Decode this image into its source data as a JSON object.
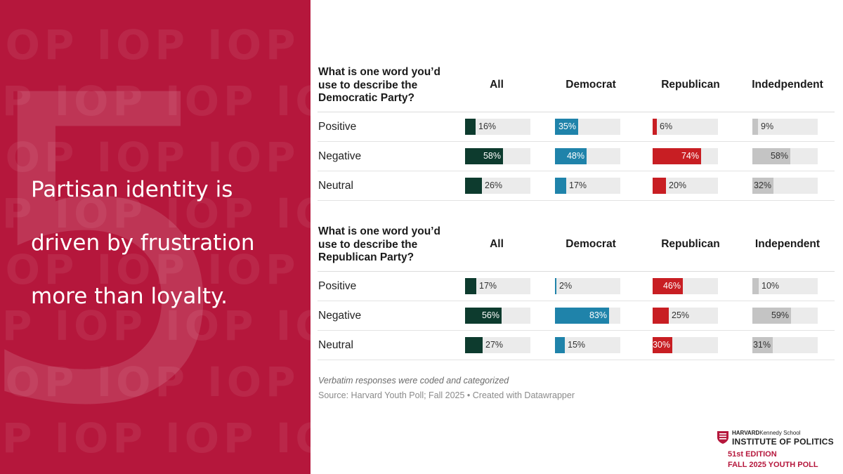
{
  "left_panel": {
    "background": "#b5173c",
    "big_number": "5",
    "watermark_text": "IOP",
    "headline_lines": [
      "Partisan identity is",
      "driven by frustration",
      "more than loyalty."
    ]
  },
  "colors": {
    "All": "#0d3b2e",
    "Democrat": "#1f83aa",
    "Republican": "#c81e23",
    "Independent": "#c4c4c4",
    "track": "#ebebeb"
  },
  "chart_data": [
    {
      "type": "table",
      "title": "What is one word you’d use to describe the Democratic Party?",
      "question_lines": [
        "What is one word you’d",
        "use to describe the",
        "Democratic Party?"
      ],
      "columns": [
        "All",
        "Democrat",
        "Republican",
        "Indedpendent"
      ],
      "rows": [
        {
          "label": "Positive",
          "values": [
            16,
            35,
            6,
            9
          ]
        },
        {
          "label": "Negative",
          "values": [
            58,
            48,
            74,
            58
          ]
        },
        {
          "label": "Neutral",
          "values": [
            26,
            17,
            20,
            32
          ]
        }
      ],
      "unit": "%",
      "value_range": [
        0,
        100
      ]
    },
    {
      "type": "table",
      "title": "What is one word you’d use to describe the Republican Party?",
      "question_lines": [
        "What is one word you’d",
        "use to describe the",
        "Republican Party?"
      ],
      "columns": [
        "All",
        "Democrat",
        "Republican",
        "Independent"
      ],
      "rows": [
        {
          "label": "Positive",
          "values": [
            17,
            2,
            46,
            10
          ]
        },
        {
          "label": "Negative",
          "values": [
            56,
            83,
            25,
            59
          ]
        },
        {
          "label": "Neutral",
          "values": [
            27,
            15,
            30,
            31
          ]
        }
      ],
      "unit": "%",
      "value_range": [
        0,
        100
      ]
    }
  ],
  "footnote": "Verbatim responses were coded and categorized",
  "source": "Source: Harvard Youth Poll; Fall 2025 • Created with Datawrapper",
  "logo": {
    "school_bold": "HARVARD",
    "school_rest": "Kennedy School",
    "institute": "INSTITUTE OF POLITICS",
    "edition": "51st EDITION",
    "poll": "FALL 2025 YOUTH POLL"
  }
}
